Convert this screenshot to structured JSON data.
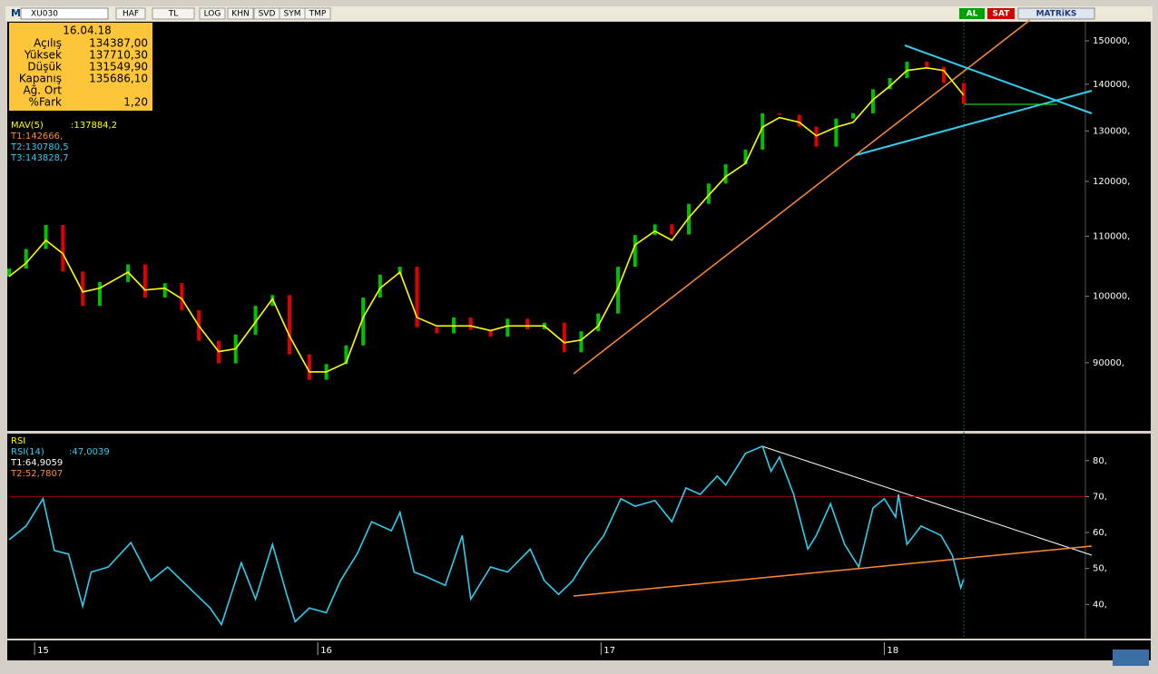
{
  "toolbar": {
    "logo": "M",
    "symbol": "XU030",
    "buttons": [
      "HAF",
      "TL",
      "LOG",
      "KHN",
      "SVD",
      "SYM",
      "TMP"
    ],
    "right": [
      "AL",
      "SAT"
    ],
    "brand": "MATRiKS"
  },
  "info": {
    "date": "16.04.18",
    "rows": [
      {
        "label": "Açılış",
        "value": "134387,00"
      },
      {
        "label": "Yüksek",
        "value": "137710,30"
      },
      {
        "label": "Düşük",
        "value": "131549,90"
      },
      {
        "label": "Kapanış",
        "value": "135686,10"
      },
      {
        "label": "Ağ. Ort"
      },
      {
        "label": "%Fark",
        "value": "1,20"
      }
    ]
  },
  "chart_data": [
    {
      "type": "line",
      "log": true,
      "xlim": [
        2014.91,
        2018.71
      ],
      "ylim": [
        81000,
        154600
      ],
      "yticks": [
        {
          "value": 150000,
          "label": "150000,"
        },
        {
          "value": 140000,
          "label": "140000,"
        },
        {
          "value": 130000,
          "label": "130000,"
        },
        {
          "value": 120000,
          "label": "120000,"
        },
        {
          "value": 110000,
          "label": "110000,"
        },
        {
          "value": 100000,
          "label": "100000,"
        },
        {
          "value": 90000,
          "label": "90000,"
        }
      ],
      "x": [
        2014.91,
        2014.97,
        2015.04,
        2015.1,
        2015.17,
        2015.23,
        2015.33,
        2015.39,
        2015.46,
        2015.52,
        2015.58,
        2015.65,
        2015.71,
        2015.78,
        2015.84,
        2015.9,
        2015.97,
        2016.03,
        2016.1,
        2016.16,
        2016.22,
        2016.29,
        2016.35,
        2016.42,
        2016.48,
        2016.54,
        2016.61,
        2016.67,
        2016.74,
        2016.8,
        2016.87,
        2016.93,
        2016.99,
        2017.06,
        2017.12,
        2017.19,
        2017.25,
        2017.31,
        2017.38,
        2017.44,
        2017.51,
        2017.57,
        2017.63,
        2017.7,
        2017.76,
        2017.83,
        2017.89,
        2017.96,
        2018.02,
        2018.08,
        2018.15,
        2018.21,
        2018.28
      ],
      "series": [
        {
          "style": "bars",
          "color": "#00c000",
          "down_color": "#e00000",
          "values": [
            104500,
            107800,
            112000,
            104000,
            98500,
            102300,
            105200,
            99800,
            102100,
            97800,
            93200,
            89900,
            94100,
            98500,
            100200,
            91200,
            87600,
            89800,
            92500,
            99800,
            103500,
            104800,
            95200,
            94300,
            96700,
            94800,
            93800,
            96500,
            94900,
            95900,
            91500,
            94600,
            97300,
            104800,
            110200,
            112100,
            110300,
            115800,
            119600,
            123300,
            126200,
            133700,
            133400,
            130900,
            126800,
            132600,
            133700,
            138900,
            141400,
            145100,
            143900,
            140300,
            135700
          ]
        },
        {
          "name": "MAV(5)",
          "last_label": ":137884,2",
          "color": "#ffff00",
          "values": [
            103200,
            105400,
            109300,
            107000,
            100700,
            101300,
            103900,
            101000,
            101300,
            99600,
            95400,
            91600,
            92000,
            96000,
            99600,
            93900,
            88700,
            88700,
            90000,
            96700,
            101300,
            103900,
            96700,
            95400,
            95400,
            95400,
            94700,
            95400,
            95400,
            95400,
            92900,
            93300,
            95400,
            101300,
            108500,
            110900,
            109300,
            113300,
            117400,
            120900,
            123500,
            130800,
            132800,
            131800,
            129000,
            130800,
            131800,
            136600,
            139600,
            143100,
            143700,
            143100,
            137600
          ]
        }
      ],
      "annotations": [
        {
          "text": "T1:142666,",
          "color": "#ff8c33"
        },
        {
          "text": "T2:130780,5",
          "color": "#33ccee"
        },
        {
          "text": "T3:143828,7",
          "color": "#33ccee"
        }
      ]
    },
    {
      "type": "line",
      "title": "RSI",
      "xlim": [
        2014.91,
        2018.71
      ],
      "ylim": [
        31,
        87
      ],
      "level": 70,
      "yticks": [
        {
          "value": 80,
          "label": "80,"
        },
        {
          "value": 70,
          "label": "70,"
        },
        {
          "value": 60,
          "label": "60,"
        },
        {
          "value": 50,
          "label": "50,"
        },
        {
          "value": 40,
          "label": "40,"
        }
      ],
      "xticks": [
        {
          "value": 2015,
          "label": "15"
        },
        {
          "value": 2016,
          "label": "16"
        },
        {
          "value": 2017,
          "label": "17"
        },
        {
          "value": 2018,
          "label": "18"
        }
      ],
      "x": [
        2014.91,
        2014.97,
        2015.03,
        2015.07,
        2015.12,
        2015.17,
        2015.2,
        2015.26,
        2015.34,
        2015.41,
        2015.47,
        2015.52,
        2015.62,
        2015.66,
        2015.73,
        2015.78,
        2015.84,
        2015.89,
        2015.92,
        2015.97,
        2016.03,
        2016.08,
        2016.14,
        2016.19,
        2016.26,
        2016.29,
        2016.34,
        2016.38,
        2016.45,
        2016.51,
        2016.54,
        2016.61,
        2016.67,
        2016.75,
        2016.8,
        2016.85,
        2016.9,
        2016.95,
        2017.01,
        2017.07,
        2017.12,
        2017.19,
        2017.25,
        2017.3,
        2017.35,
        2017.41,
        2017.44,
        2017.51,
        2017.57,
        2017.6,
        2017.63,
        2017.68,
        2017.73,
        2017.76,
        2017.81,
        2017.86,
        2017.91,
        2017.96,
        2018.0,
        2018.04,
        2018.05,
        2018.08,
        2018.13,
        2018.2,
        2018.24,
        2018.27,
        2018.28
      ],
      "series": [
        {
          "name": "RSI(14)",
          "last_label": ":47,0039",
          "color": "#33ccee",
          "values": [
            58,
            61.8,
            69.4,
            55,
            54,
            39.5,
            49,
            50.4,
            57.2,
            46.6,
            50.4,
            46.6,
            39,
            34.4,
            51.6,
            41.5,
            56.7,
            42.8,
            35.2,
            39,
            37.7,
            46.6,
            54.2,
            63,
            60.5,
            65.6,
            49,
            47.8,
            45.3,
            59.2,
            41.5,
            50.4,
            49,
            55.4,
            46.6,
            42.8,
            46.6,
            53,
            59.2,
            69.4,
            67.3,
            68.9,
            63,
            72.4,
            70.6,
            75.7,
            73.2,
            82,
            84,
            77,
            81,
            70.6,
            55.4,
            59.2,
            68,
            56.7,
            50.4,
            66.8,
            69.4,
            64.3,
            70.6,
            56.7,
            61.8,
            59.2,
            53.7,
            44.6,
            47
          ]
        }
      ],
      "annotations": [
        {
          "text": "T1:64,9059",
          "color": "#ffffff"
        },
        {
          "text": "T2:52,7807",
          "color": "#ff8c33"
        }
      ]
    }
  ]
}
